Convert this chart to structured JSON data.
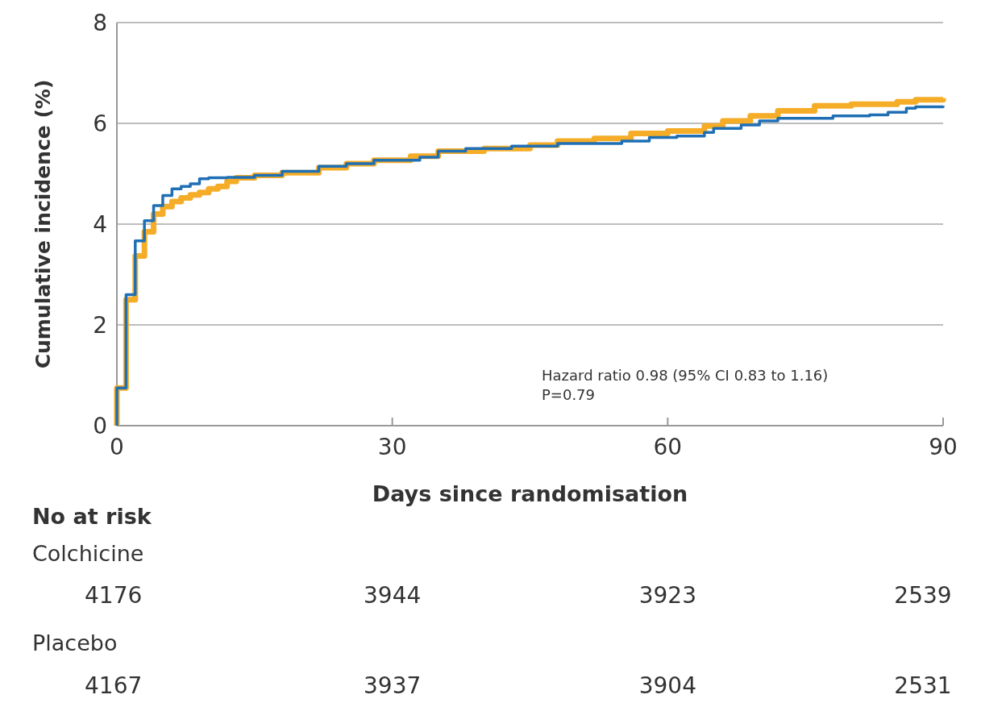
{
  "chart_data": {
    "type": "step",
    "xlabel": "Days since randomisation",
    "ylabel": "Cumulative incidence (%)",
    "xlim": [
      0,
      90
    ],
    "xticks": [
      0,
      30,
      60,
      90
    ],
    "ylim": [
      0,
      8
    ],
    "yticks": [
      0,
      2,
      4,
      6,
      8
    ],
    "grid": "y",
    "series": [
      {
        "color": "#f5ac27",
        "x": [
          0,
          0,
          1,
          2,
          3,
          4,
          5,
          6,
          7,
          8,
          9,
          10,
          11,
          12,
          13,
          15,
          18,
          22,
          25,
          28,
          32,
          35,
          40,
          45,
          48,
          52,
          56,
          60,
          64,
          66,
          69,
          72,
          76,
          80,
          85,
          87,
          90
        ],
        "values": [
          0,
          0.75,
          2.5,
          3.37,
          3.85,
          4.2,
          4.35,
          4.45,
          4.52,
          4.58,
          4.63,
          4.7,
          4.75,
          4.85,
          4.92,
          4.97,
          5.02,
          5.12,
          5.2,
          5.27,
          5.35,
          5.45,
          5.5,
          5.57,
          5.65,
          5.7,
          5.8,
          5.85,
          5.95,
          6.05,
          6.15,
          6.25,
          6.35,
          6.38,
          6.43,
          6.47,
          6.5
        ]
      },
      {
        "color": "#1f6fb5",
        "x": [
          0,
          0,
          1,
          2,
          3,
          4,
          5,
          6,
          7,
          8,
          9,
          10,
          12,
          15,
          18,
          22,
          25,
          28,
          33,
          35,
          38,
          43,
          48,
          55,
          58,
          61,
          64,
          65,
          68,
          70,
          72,
          78,
          82,
          84,
          86,
          87,
          90
        ],
        "values": [
          0,
          0.75,
          2.6,
          3.67,
          4.07,
          4.37,
          4.57,
          4.7,
          4.75,
          4.8,
          4.9,
          4.92,
          4.93,
          4.97,
          5.05,
          5.15,
          5.2,
          5.27,
          5.33,
          5.45,
          5.5,
          5.55,
          5.6,
          5.65,
          5.72,
          5.75,
          5.82,
          5.9,
          5.97,
          6.05,
          6.1,
          6.15,
          6.17,
          6.22,
          6.3,
          6.33,
          6.35
        ]
      }
    ],
    "annotations": [
      "Hazard ratio 0.98 (95% CI 0.83 to 1.16)",
      "P=0.79",
      "No at risk",
      "Colchicine",
      "4176",
      "3944",
      "3923",
      "2539",
      "Placebo",
      "4167",
      "3937",
      "3904",
      "2531"
    ]
  }
}
